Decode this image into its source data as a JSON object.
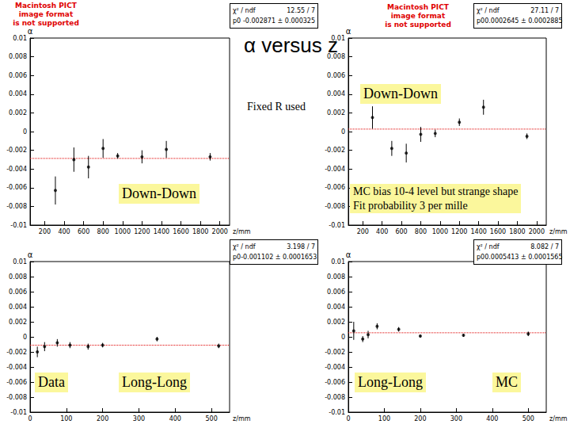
{
  "title": "α versus z",
  "placeholders": [
    [
      "Macintosh PICT",
      "image format",
      "is not supported"
    ],
    [
      "Macintosh PICT",
      "image format",
      "is not supported"
    ]
  ],
  "chart_data": [
    {
      "type": "scatter",
      "xlabel": "z/mm",
      "ylabel": "α",
      "color": "#000000",
      "marker": "circle",
      "xlim": [
        50,
        2100
      ],
      "xticks": [
        200,
        400,
        600,
        800,
        1000,
        1200,
        1400,
        1600,
        1800,
        2000
      ],
      "ylim": [
        -0.01,
        0.01
      ],
      "yticks": [
        -0.01,
        -0.008,
        -0.006,
        -0.004,
        -0.002,
        0,
        0.002,
        0.004,
        0.006,
        0.008,
        0.01
      ],
      "x": [
        310,
        500,
        650,
        800,
        950,
        1200,
        1450,
        1900
      ],
      "values": [
        -0.0063,
        -0.003,
        -0.0038,
        -0.0018,
        -0.0026,
        -0.0027,
        -0.0019,
        -0.0027
      ],
      "errors": [
        0.0015,
        0.0013,
        0.0012,
        0.001,
        0.0003,
        0.0007,
        0.0009,
        0.0004
      ],
      "fit": -0.002871,
      "stats": [
        [
          "χ² / ndf",
          "12.55 / 7"
        ],
        [
          "p0",
          "-0.002871 ± 0.000325"
        ]
      ],
      "annotations": [
        [
          "Fixed R used"
        ],
        [
          "Down-Down"
        ]
      ]
    },
    {
      "type": "scatter",
      "xlabel": "z/mm",
      "ylabel": "α",
      "color": "#000000",
      "marker": "circle",
      "xlim": [
        50,
        2100
      ],
      "xticks": [
        200,
        400,
        600,
        800,
        1000,
        1200,
        1400,
        1600,
        1800,
        2000
      ],
      "ylim": [
        -0.01,
        0.01
      ],
      "yticks": [
        -0.01,
        -0.008,
        -0.006,
        -0.004,
        -0.002,
        0,
        0.002,
        0.004,
        0.006,
        0.008,
        0.01
      ],
      "x": [
        300,
        500,
        650,
        800,
        950,
        1200,
        1450,
        1900
      ],
      "values": [
        0.0015,
        -0.0018,
        -0.0023,
        -0.0003,
        -0.0002,
        0.001,
        0.0026,
        -0.0005
      ],
      "errors": [
        0.0012,
        0.0008,
        0.001,
        0.0008,
        0.0004,
        0.0004,
        0.0008,
        0.0003
      ],
      "fit": 0.0002645,
      "stats": [
        [
          "χ² / ndf",
          "27.11 / 7"
        ],
        [
          "p0",
          "0.0002645 ± 0.0002885"
        ]
      ],
      "annotations": [
        [
          "Down-Down"
        ],
        [
          "MC bias 10-4 level but strange shape",
          "Fit probability 3 per mille"
        ]
      ]
    },
    {
      "type": "scatter",
      "xlabel": "z/mm",
      "ylabel": "α",
      "color": "#000000",
      "marker": "circle",
      "xlim": [
        0,
        550
      ],
      "xticks": [
        0,
        100,
        200,
        300,
        400,
        500
      ],
      "ylim": [
        -0.01,
        0.01
      ],
      "yticks": [
        -0.01,
        -0.008,
        -0.006,
        -0.004,
        -0.002,
        0,
        0.002,
        0.004,
        0.006,
        0.008,
        0.01
      ],
      "x": [
        20,
        40,
        75,
        110,
        160,
        200,
        350,
        520
      ],
      "values": [
        -0.002,
        -0.0013,
        -0.0008,
        -0.0011,
        -0.0013,
        -0.0011,
        -0.0003,
        -0.0012
      ],
      "errors": [
        0.0007,
        0.0006,
        0.0005,
        0.0004,
        0.0004,
        0.0003,
        0.0003,
        0.0003
      ],
      "fit": -0.001102,
      "stats": [
        [
          "χ² / ndf",
          "3.198 / 7"
        ],
        [
          "p0",
          "-0.001102 ± 0.0001653"
        ]
      ],
      "annotations": [
        [
          "Data"
        ],
        [
          "Long-Long"
        ]
      ]
    },
    {
      "type": "scatter",
      "xlabel": "z/mm",
      "ylabel": "α",
      "color": "#000000",
      "marker": "circle",
      "xlim": [
        0,
        550
      ],
      "xticks": [
        0,
        100,
        200,
        300,
        400,
        500
      ],
      "ylim": [
        -0.01,
        0.01
      ],
      "yticks": [
        -0.01,
        -0.008,
        -0.006,
        -0.004,
        -0.002,
        0,
        0.002,
        0.004,
        0.006,
        0.008,
        0.01
      ],
      "x": [
        15,
        40,
        55,
        80,
        140,
        200,
        320,
        500
      ],
      "values": [
        0.0008,
        -0.0003,
        0.0003,
        0.0014,
        0.001,
        0.0001,
        0.0002,
        0.0004
      ],
      "errors": [
        0.0012,
        0.0004,
        0.0005,
        0.0004,
        0.0003,
        0.0002,
        0.0002,
        0.0003
      ],
      "fit": 0.0005413,
      "stats": [
        [
          "χ² / ndf",
          "8.082 / 7"
        ],
        [
          "p0",
          "0.0005413 ± 0.0001565"
        ]
      ],
      "annotations": [
        [
          "Long-Long"
        ],
        [
          "MC"
        ]
      ]
    }
  ]
}
